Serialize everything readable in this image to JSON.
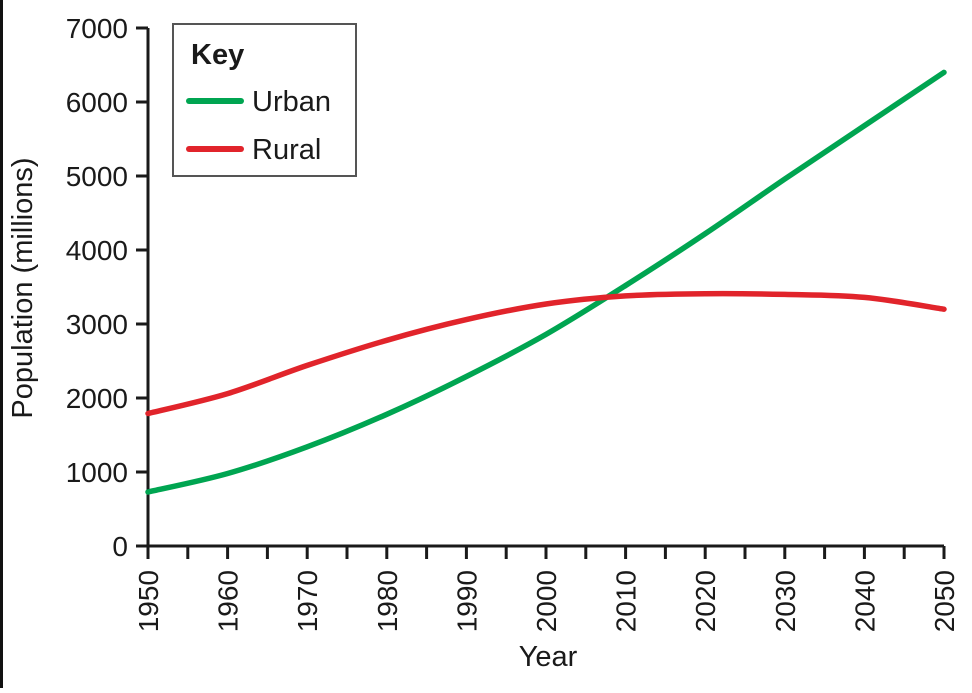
{
  "page": {
    "background": "#ffffff",
    "axis_color": "#1a1a1a",
    "text_color": "#1a1a1a",
    "legend_border_color": "#555555"
  },
  "chart_data": {
    "type": "line",
    "title": "",
    "xlabel": "Year",
    "ylabel": "Population (millions)",
    "x": [
      1950,
      1960,
      1970,
      1980,
      1990,
      2000,
      2010,
      2020,
      2030,
      2040,
      2050
    ],
    "series": [
      {
        "name": "Urban",
        "color": "#00a551",
        "values": [
          730,
          980,
          1340,
          1780,
          2290,
          2860,
          3520,
          4220,
          4960,
          5680,
          6400
        ]
      },
      {
        "name": "Rural",
        "color": "#e1242b",
        "values": [
          1790,
          2060,
          2440,
          2780,
          3060,
          3270,
          3380,
          3410,
          3400,
          3360,
          3200
        ]
      }
    ],
    "xlim": [
      1950,
      2050
    ],
    "ylim": [
      0,
      7000
    ],
    "yticks": [
      0,
      1000,
      2000,
      3000,
      4000,
      5000,
      6000,
      7000
    ],
    "xtick_minor_step": 5,
    "grid": false,
    "legend": {
      "title": "Key",
      "position": "top-left"
    }
  }
}
